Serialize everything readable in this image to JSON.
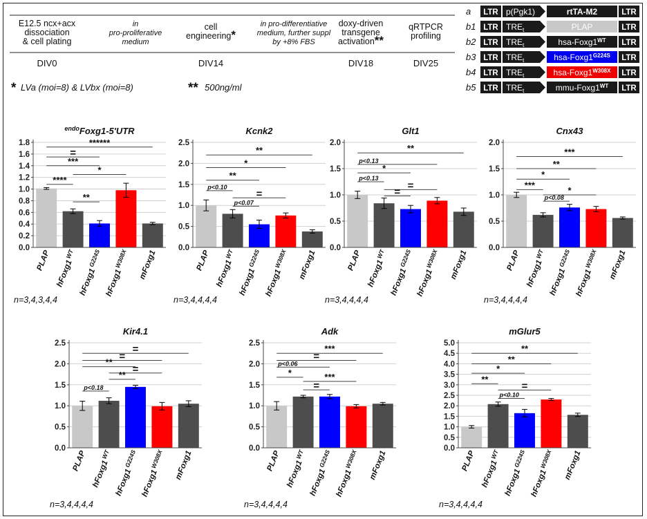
{
  "protocol": {
    "steps": [
      {
        "label_lines": [
          "E12.5 ncx+acx",
          "dissociation",
          "& cell plating"
        ],
        "italic": false,
        "day": "DIV0"
      },
      {
        "label_lines": [
          "in",
          "pro-proliferative",
          "medium"
        ],
        "italic": true,
        "day": ""
      },
      {
        "label_lines": [
          "cell",
          "engineering"
        ],
        "italic": false,
        "marker": "*",
        "day": "DIV14"
      },
      {
        "label_lines": [
          "in pro-differentiative",
          "medium, further suppl",
          "by +8% FBS"
        ],
        "italic": true,
        "day": ""
      },
      {
        "label_lines": [
          "doxy-driven",
          "transgene",
          "activation"
        ],
        "italic": false,
        "marker": "**",
        "day": "DIV18"
      },
      {
        "label_lines": [
          "qRTPCR",
          "profiling"
        ],
        "italic": false,
        "day": "DIV25"
      }
    ],
    "footnote_1_marker": "*",
    "footnote_1": "LVa (moi=8) & LVbx (moi=8)",
    "footnote_2_marker": "**",
    "footnote_2": "500ng/ml"
  },
  "constructs": [
    {
      "id": "a",
      "ltr_left": "LTR",
      "promoter": "p(Pgk1)",
      "gene": "rtTA-M2",
      "gene_sup": "",
      "ltr_right": "LTR",
      "gene_color": "#1a1a1a"
    },
    {
      "id": "b1",
      "ltr_left": "LTR",
      "promoter": "TRE",
      "promoter_sub": "t",
      "gene": "PLAP",
      "gene_sup": "",
      "ltr_right": "LTR",
      "gene_color": "#c8c8c8"
    },
    {
      "id": "b2",
      "ltr_left": "LTR",
      "promoter": "TRE",
      "promoter_sub": "t",
      "gene": "hsa-Foxg1",
      "gene_sup": "WT",
      "ltr_right": "LTR",
      "gene_color": "#1a1a1a"
    },
    {
      "id": "b3",
      "ltr_left": "LTR",
      "promoter": "TRE",
      "promoter_sub": "t",
      "gene": "hsa-Foxg1",
      "gene_sup": "G224S",
      "ltr_right": "LTR",
      "gene_color": "#0000ee"
    },
    {
      "id": "b4",
      "ltr_left": "LTR",
      "promoter": "TRE",
      "promoter_sub": "t",
      "gene": "hsa-Foxg1",
      "gene_sup": "W308X",
      "ltr_right": "LTR",
      "gene_color": "#ee0000"
    },
    {
      "id": "b5",
      "ltr_left": "LTR",
      "promoter": "TRE",
      "promoter_sub": "t",
      "gene": "mmu-Foxg1",
      "gene_sup": "WT",
      "ltr_right": "LTR",
      "gene_color": "#1a1a1a"
    }
  ],
  "chart_data": [
    {
      "type": "bar",
      "title_sup": "endo",
      "title": "Foxg1-5'UTR",
      "categories": [
        "PLAP",
        "hFoxg1 WT",
        "hFoxg1 G224S",
        "hFoxg1 W308X",
        "mFoxg1"
      ],
      "category_sup": [
        "",
        "WT",
        "G224S",
        "W308X",
        ""
      ],
      "category_base": [
        "PLAP",
        "hFoxg1",
        "hFoxg1",
        "hFoxg1",
        "mFoxg1"
      ],
      "values": [
        1.01,
        0.62,
        0.41,
        0.98,
        0.41
      ],
      "errors": [
        0.015,
        0.04,
        0.05,
        0.12,
        0.02
      ],
      "colors": [
        "#c8c8c8",
        "#4d4d4d",
        "#0000ff",
        "#ff0000",
        "#4d4d4d"
      ],
      "ylim": [
        0,
        1.8
      ],
      "yticks": [
        "0.0",
        "0.2",
        "0.4",
        "0.6",
        "0.8",
        "1.0",
        "1.2",
        "1.4",
        "1.6",
        "1.8"
      ],
      "brackets": [
        {
          "from": 0,
          "to": 4,
          "label": "******",
          "y": 1.72
        },
        {
          "from": 0,
          "to": 2,
          "label": "=",
          "y": 1.55
        },
        {
          "from": 0,
          "to": 2,
          "label": "***",
          "y": 1.4
        },
        {
          "from": 1,
          "to": 3,
          "label": "*",
          "y": 1.25
        },
        {
          "from": 0,
          "to": 1,
          "label": "****",
          "y": 1.08
        },
        {
          "from": 1,
          "to": 2,
          "label": "**",
          "y": 0.78
        }
      ],
      "n_label": "n=3,4,3,4,4"
    },
    {
      "type": "bar",
      "title_sup": "",
      "title": "Kcnk2",
      "categories": [
        "PLAP",
        "hFoxg1 WT",
        "hFoxg1 G224S",
        "hFoxg1 W308X",
        "mFoxg1"
      ],
      "category_sup": [
        "",
        "WT",
        "G224S",
        "W308X",
        ""
      ],
      "category_base": [
        "PLAP",
        "hFoxg1",
        "hFoxg1",
        "hFoxg1",
        "mFoxg1"
      ],
      "values": [
        1.0,
        0.8,
        0.55,
        0.76,
        0.38
      ],
      "errors": [
        0.13,
        0.1,
        0.1,
        0.06,
        0.04
      ],
      "colors": [
        "#c8c8c8",
        "#4d4d4d",
        "#0000ff",
        "#ff0000",
        "#4d4d4d"
      ],
      "ylim": [
        0,
        2.5
      ],
      "yticks": [
        "0.0",
        "0.5",
        "1.0",
        "1.5",
        "2.0",
        "2.5"
      ],
      "brackets": [
        {
          "from": 0,
          "to": 4,
          "label": "**",
          "y": 2.2
        },
        {
          "from": 0,
          "to": 3,
          "label": "*",
          "y": 1.9
        },
        {
          "from": 0,
          "to": 2,
          "label": "**",
          "y": 1.6
        },
        {
          "from": 0,
          "to": 1,
          "label": "p<0.10",
          "y": 1.35
        },
        {
          "from": 1,
          "to": 3,
          "label": "=",
          "y": 1.18
        },
        {
          "from": 1,
          "to": 2,
          "label": "p<0.07",
          "y": 0.98
        }
      ],
      "n_label": "n=3,4,4,4,4"
    },
    {
      "type": "bar",
      "title_sup": "",
      "title": "Glt1",
      "categories": [
        "PLAP",
        "hFoxg1 WT",
        "hFoxg1 G224S",
        "hFoxg1 W308X",
        "mFoxg1"
      ],
      "category_sup": [
        "",
        "WT",
        "G224S",
        "W308X",
        ""
      ],
      "category_base": [
        "PLAP",
        "hFoxg1",
        "hFoxg1",
        "hFoxg1",
        "mFoxg1"
      ],
      "values": [
        1.0,
        0.84,
        0.73,
        0.89,
        0.68
      ],
      "errors": [
        0.07,
        0.1,
        0.07,
        0.06,
        0.07
      ],
      "colors": [
        "#c8c8c8",
        "#4d4d4d",
        "#0000ff",
        "#ff0000",
        "#4d4d4d"
      ],
      "ylim": [
        0,
        2.0
      ],
      "yticks": [
        "0.0",
        "0.5",
        "1.0",
        "1.5",
        "2.0"
      ],
      "brackets": [
        {
          "from": 0,
          "to": 4,
          "label": "**",
          "y": 1.8
        },
        {
          "from": 0,
          "to": 3,
          "label": "p<0.13",
          "y": 1.58
        },
        {
          "from": 0,
          "to": 2,
          "label": "*",
          "y": 1.42
        },
        {
          "from": 0,
          "to": 1,
          "label": "p<0.13",
          "y": 1.25
        },
        {
          "from": 1,
          "to": 3,
          "label": "=",
          "y": 1.1
        },
        {
          "from": 1,
          "to": 2,
          "label": "=",
          "y": 0.98
        }
      ],
      "n_label": "n=3,4,4,4,4"
    },
    {
      "type": "bar",
      "title_sup": "",
      "title": "Cnx43",
      "categories": [
        "PLAP",
        "hFoxg1 WT",
        "hFoxg1 G224S",
        "hFoxg1 W308X",
        "mFoxg1"
      ],
      "category_sup": [
        "",
        "WT",
        "G224S",
        "W308X",
        ""
      ],
      "category_base": [
        "PLAP",
        "hFoxg1",
        "hFoxg1",
        "hFoxg1",
        "mFoxg1"
      ],
      "values": [
        1.0,
        0.62,
        0.76,
        0.73,
        0.56
      ],
      "errors": [
        0.05,
        0.04,
        0.06,
        0.05,
        0.02
      ],
      "colors": [
        "#c8c8c8",
        "#4d4d4d",
        "#0000ff",
        "#ff0000",
        "#4d4d4d"
      ],
      "ylim": [
        0,
        2.0
      ],
      "yticks": [
        "0.0",
        "0.5",
        "1.0",
        "1.5",
        "2.0"
      ],
      "brackets": [
        {
          "from": 0,
          "to": 4,
          "label": "***",
          "y": 1.73
        },
        {
          "from": 0,
          "to": 3,
          "label": "**",
          "y": 1.5
        },
        {
          "from": 0,
          "to": 2,
          "label": "*",
          "y": 1.3
        },
        {
          "from": 0,
          "to": 1,
          "label": "***",
          "y": 1.1
        },
        {
          "from": 1,
          "to": 3,
          "label": "*",
          "y": 1.0
        },
        {
          "from": 1,
          "to": 2,
          "label": "p<0.08",
          "y": 0.88
        }
      ],
      "n_label": "n=3,4,4,4,4"
    },
    {
      "type": "bar",
      "title_sup": "",
      "title": "Kir4.1",
      "categories": [
        "PLAP",
        "hFoxg1 WT",
        "hFoxg1 G224S",
        "hFoxg1 W308X",
        "mFoxg1"
      ],
      "category_sup": [
        "",
        "WT",
        "G224S",
        "W308X",
        ""
      ],
      "category_base": [
        "PLAP",
        "hFoxg1",
        "hFoxg1",
        "hFoxg1",
        "mFoxg1"
      ],
      "values": [
        1.0,
        1.12,
        1.45,
        0.99,
        1.05
      ],
      "errors": [
        0.11,
        0.07,
        0.04,
        0.09,
        0.07
      ],
      "colors": [
        "#c8c8c8",
        "#4d4d4d",
        "#0000ff",
        "#ff0000",
        "#4d4d4d"
      ],
      "ylim": [
        0,
        2.5
      ],
      "yticks": [
        "0.0",
        "0.5",
        "1.0",
        "1.5",
        "2.0",
        "2.5"
      ],
      "brackets": [
        {
          "from": 0,
          "to": 4,
          "label": "=",
          "y": 2.25
        },
        {
          "from": 0,
          "to": 3,
          "label": "=",
          "y": 2.08
        },
        {
          "from": 0,
          "to": 2,
          "label": "**",
          "y": 1.93
        },
        {
          "from": 1,
          "to": 3,
          "label": "=",
          "y": 1.78
        },
        {
          "from": 1,
          "to": 2,
          "label": "**",
          "y": 1.63
        },
        {
          "from": 0,
          "to": 1,
          "label": "p<0.18",
          "y": 1.35
        }
      ],
      "n_label": "n=3,4,4,4,4"
    },
    {
      "type": "bar",
      "title_sup": "",
      "title": "Adk",
      "categories": [
        "PLAP",
        "hFoxg1 WT",
        "hFoxg1 G224S",
        "hFoxg1 W308X",
        "mFoxg1"
      ],
      "category_sup": [
        "",
        "WT",
        "G224S",
        "W308X",
        ""
      ],
      "category_base": [
        "PLAP",
        "hFoxg1",
        "hFoxg1",
        "hFoxg1",
        "mFoxg1"
      ],
      "values": [
        1.0,
        1.22,
        1.22,
        0.99,
        1.05
      ],
      "errors": [
        0.1,
        0.03,
        0.05,
        0.04,
        0.03
      ],
      "colors": [
        "#c8c8c8",
        "#4d4d4d",
        "#0000ff",
        "#ff0000",
        "#4d4d4d"
      ],
      "ylim": [
        0,
        2.5
      ],
      "yticks": [
        "0.0",
        "0.5",
        "1.0",
        "1.5",
        "2.0",
        "2.5"
      ],
      "brackets": [
        {
          "from": 0,
          "to": 4,
          "label": "***",
          "y": 2.25
        },
        {
          "from": 0,
          "to": 3,
          "label": "=",
          "y": 2.08
        },
        {
          "from": 0,
          "to": 2,
          "label": "p<0.06",
          "y": 1.92
        },
        {
          "from": 0,
          "to": 1,
          "label": "*",
          "y": 1.68
        },
        {
          "from": 1,
          "to": 3,
          "label": "***",
          "y": 1.58
        },
        {
          "from": 1,
          "to": 2,
          "label": "=",
          "y": 1.38
        }
      ],
      "n_label": "n=3,4,4,4,4"
    },
    {
      "type": "bar",
      "title_sup": "",
      "title": "mGlur5",
      "categories": [
        "PLAP",
        "hFoxg1 WT",
        "hFoxg1 G224S",
        "hFoxg1 W308X",
        "mFoxg1"
      ],
      "category_sup": [
        "",
        "WT",
        "G224S",
        "W308X",
        ""
      ],
      "category_base": [
        "PLAP",
        "hFoxg1",
        "hFoxg1",
        "hFoxg1",
        "mFoxg1"
      ],
      "values": [
        1.0,
        2.08,
        1.65,
        2.3,
        1.57
      ],
      "errors": [
        0.06,
        0.1,
        0.18,
        0.05,
        0.08
      ],
      "colors": [
        "#c8c8c8",
        "#4d4d4d",
        "#0000ff",
        "#ff0000",
        "#4d4d4d"
      ],
      "ylim": [
        0,
        5.0
      ],
      "yticks": [
        "0.0",
        "0.5",
        "1.0",
        "1.5",
        "2.0",
        "2.5",
        "3.0",
        "3.5",
        "4.0",
        "4.5",
        "5.0"
      ],
      "brackets": [
        {
          "from": 0,
          "to": 4,
          "label": "**",
          "y": 4.5
        },
        {
          "from": 0,
          "to": 3,
          "label": "**",
          "y": 4.0
        },
        {
          "from": 0,
          "to": 2,
          "label": "*",
          "y": 3.55
        },
        {
          "from": 0,
          "to": 1,
          "label": "**",
          "y": 3.05
        },
        {
          "from": 1,
          "to": 3,
          "label": "=",
          "y": 2.75
        },
        {
          "from": 1,
          "to": 2,
          "label": "p<0.10",
          "y": 2.35
        }
      ],
      "n_label": "n=3,4,4,4,4"
    }
  ]
}
